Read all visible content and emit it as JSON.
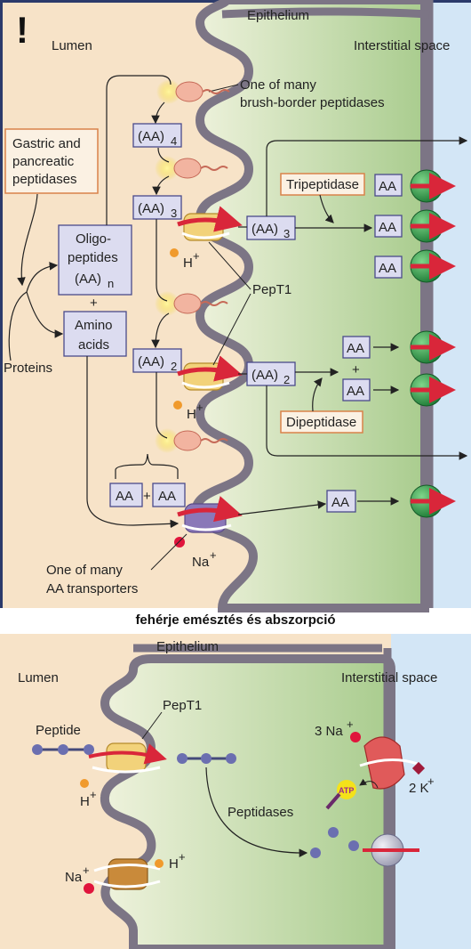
{
  "top": {
    "warning": "!",
    "epithelium": "Epithelium",
    "lumen": "Lumen",
    "interstitial": "Interstitial space",
    "brush_border_1": "One of many",
    "brush_border_2": "brush-border peptidases",
    "gastric_1": "Gastric and",
    "gastric_2": "pancreatic",
    "gastric_3": "peptidases",
    "oligo_1": "Oligo-",
    "oligo_2": "peptides",
    "oligo_3": "(AA)",
    "oligo_sub": "n",
    "plus": "+",
    "amino_1": "Amino",
    "amino_2": "acids",
    "proteins": "Proteins",
    "aa": "AA",
    "aa_paren": "(AA)",
    "sub4": "4",
    "sub3": "3",
    "sub2": "2",
    "hplus": "H",
    "plus_sup": "+",
    "pept1": "PepT1",
    "tripeptidase": "Tripeptidase",
    "dipeptidase": "Dipeptidase",
    "na": "Na",
    "aa_transporters_1": "One of many",
    "aa_transporters_2": "AA transporters"
  },
  "caption": "fehérje emésztés és abszorpció",
  "bottom": {
    "epithelium": "Epithelium",
    "lumen": "Lumen",
    "interstitial": "Interstitial space",
    "peptide": "Peptide",
    "pept1": "PepT1",
    "hplus": "H",
    "plus_sup": "+",
    "na_3": "3 Na",
    "k_2": "2 K",
    "atp": "ATP",
    "peptidases": "Peptidases",
    "na": "Na"
  },
  "colors": {
    "lumen": "#f7e3c8",
    "cell": "#c8ddb0",
    "interstitial": "#d3e6f6",
    "membrane": "#7c7585",
    "transporter": "#d93a3a",
    "exporter": "#2f9a4a",
    "box": "#dcdcf0"
  }
}
